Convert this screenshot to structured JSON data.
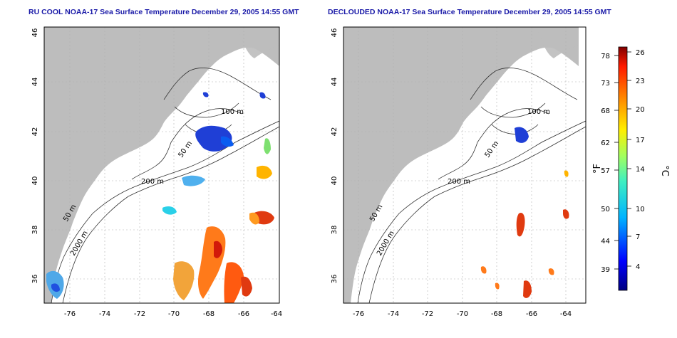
{
  "maps": {
    "left": {
      "title": "RU COOL NOAA-17 Sea Surface Temperature December 29, 2005 14:55 GMT"
    },
    "right": {
      "title": "DECLOUDED NOAA-17 Sea Surface Temperature December 29, 2005 14:55 GMT"
    }
  },
  "axes": {
    "lon_ticks": [
      "-76",
      "-74",
      "-72",
      "-70",
      "-68",
      "-66",
      "-64"
    ],
    "lat_ticks": [
      "36",
      "38",
      "40",
      "42",
      "44",
      "46"
    ]
  },
  "contour_labels": {
    "c100": "100 m",
    "c50a": "50 m",
    "c200": "200 m",
    "c50b": "50 m",
    "c2000": "2000 m"
  },
  "colorbar": {
    "f_label": "°F",
    "c_label": "°C",
    "f_ticks": [
      "78",
      "73",
      "68",
      "62",
      "57",
      "50",
      "44",
      "39"
    ],
    "c_ticks": [
      "26",
      "23",
      "20",
      "17",
      "14",
      "10",
      "7",
      "4"
    ]
  },
  "colors": {
    "land": "#bdbdbd",
    "cold": "#1f3fd6",
    "warm": "#e8501c",
    "title": "#1a1aa8"
  }
}
